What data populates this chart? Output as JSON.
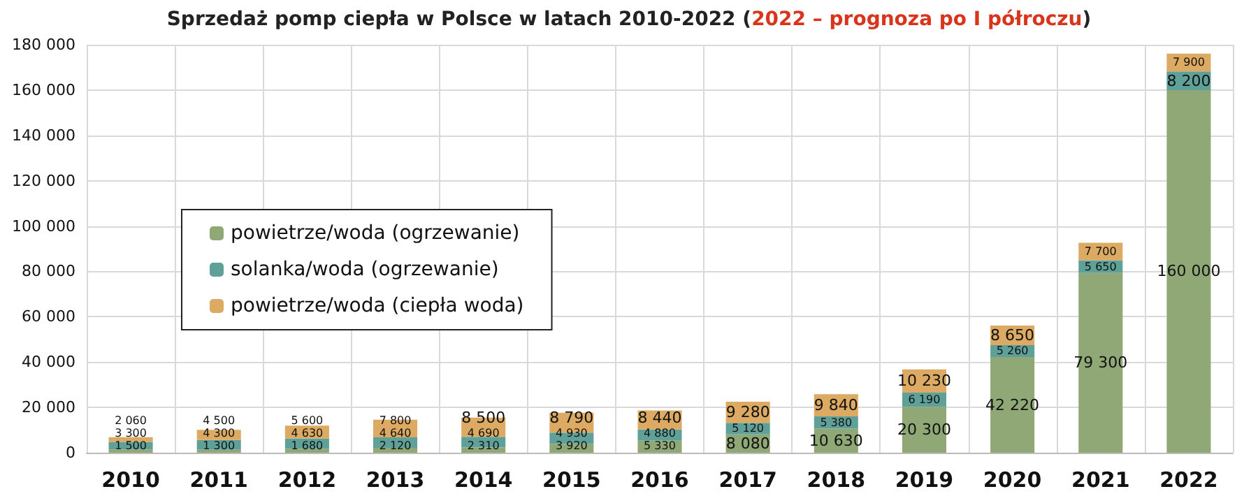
{
  "chart_data": {
    "type": "bar",
    "stacked": true,
    "title": "Sprzedaż pomp ciepła w Polsce w latach 2010-2022 (2022 – prognoza po I półroczu)",
    "categories": [
      "2010",
      "2011",
      "2012",
      "2013",
      "2014",
      "2015",
      "2016",
      "2017",
      "2018",
      "2019",
      "2020",
      "2021",
      "2022"
    ],
    "series": [
      {
        "name": "powietrze/woda (ogrzewanie)",
        "color": "#8fa876",
        "values": [
          1500,
          1300,
          1680,
          2120,
          2310,
          3920,
          5330,
          8080,
          10630,
          20300,
          42220,
          79300,
          160000
        ],
        "value_labels": [
          "1 500",
          "1 300",
          "1 680",
          "2 120",
          "2 310",
          "3 920",
          "5 330",
          "8 080",
          "10 630",
          "20 300",
          "42 220",
          "79 300",
          "160 000"
        ]
      },
      {
        "name": "solanka/woda (ogrzewanie)",
        "color": "#5fa198",
        "values": [
          3300,
          4300,
          4630,
          4640,
          4690,
          4930,
          4880,
          5120,
          5380,
          6190,
          5260,
          5650,
          8200
        ],
        "value_labels": [
          "3 300",
          "4 300",
          "4 630",
          "4 640",
          "4 690",
          "4 930",
          "4 880",
          "5 120",
          "5 380",
          "6 190",
          "5 260",
          "5 650",
          "8 200"
        ]
      },
      {
        "name": "powietrze/woda (ciepła woda)",
        "color": "#dcaa62",
        "values": [
          2060,
          4500,
          5600,
          7800,
          8500,
          8790,
          8440,
          9280,
          9840,
          10230,
          8650,
          7700,
          7900
        ],
        "value_labels": [
          "2 060",
          "4 500",
          "5 600",
          "7 800",
          "8 500",
          "8 790",
          "8 440",
          "9 280",
          "9 840",
          "10 230",
          "8 650",
          "7 700",
          "7 900"
        ]
      }
    ],
    "ylim": [
      0,
      180000
    ],
    "yticks": [
      {
        "value": 0,
        "label": "0"
      },
      {
        "value": 20000,
        "label": "20 000"
      },
      {
        "value": 40000,
        "label": "40 000"
      },
      {
        "value": 60000,
        "label": "60 000"
      },
      {
        "value": 80000,
        "label": "80 000"
      },
      {
        "value": 100000,
        "label": "100 000"
      },
      {
        "value": 120000,
        "label": "120 000"
      },
      {
        "value": 140000,
        "label": "140 000"
      },
      {
        "value": 160000,
        "label": "160 000"
      },
      {
        "value": 180000,
        "label": "180 000"
      }
    ],
    "grid": true,
    "legend": "left"
  }
}
